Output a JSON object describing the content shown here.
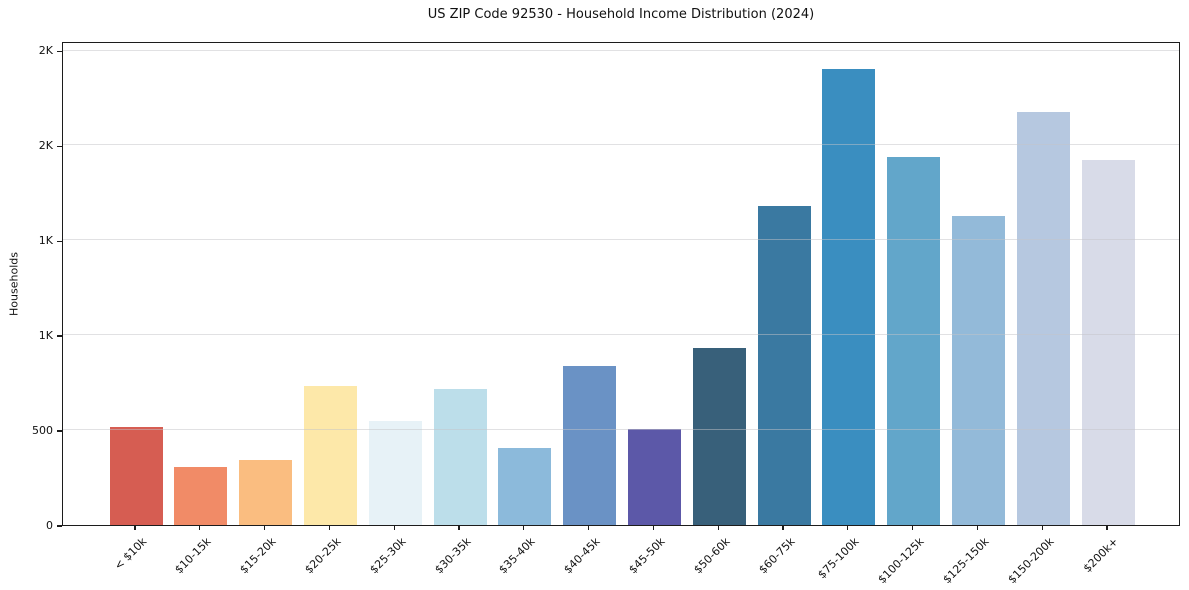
{
  "chart_data": {
    "type": "bar",
    "title": "US ZIP Code 92530 - Household Income Distribution (2024)",
    "xlabel": "",
    "ylabel": "Households",
    "categories": [
      "< $10k",
      "$10-15k",
      "$15-20k",
      "$20-25k",
      "$25-30k",
      "$30-35k",
      "$35-40k",
      "$40-45k",
      "$45-50k",
      "$50-60k",
      "$60-75k",
      "$75-100k",
      "$100-125k",
      "$125-150k",
      "$150-200k",
      "$200k+"
    ],
    "values": [
      515,
      305,
      345,
      730,
      550,
      715,
      405,
      840,
      505,
      935,
      1680,
      2405,
      1940,
      1630,
      2175,
      1925
    ],
    "bar_colors": [
      "#d65d52",
      "#f18b67",
      "#fabd80",
      "#fde8a9",
      "#e7f2f7",
      "#bcdeea",
      "#8cbadb",
      "#6a92c5",
      "#5c58a8",
      "#38607a",
      "#3a79a1",
      "#3a8ec0",
      "#62a6ca",
      "#93bad9",
      "#b6c8e0",
      "#d8dbe8"
    ],
    "ylim": [
      0,
      2550
    ],
    "yticks": [
      {
        "value": 0,
        "label": "0"
      },
      {
        "value": 500,
        "label": "500"
      },
      {
        "value": 1000,
        "label": "1K"
      },
      {
        "value": 1500,
        "label": "1K"
      },
      {
        "value": 2000,
        "label": "2K"
      },
      {
        "value": 2500,
        "label": "2K"
      }
    ],
    "grid": "horizontal",
    "legend": "none",
    "colors": {
      "spine": "#1c1c1c",
      "gridline": "#e8e8e8",
      "background": "#ffffff",
      "text": "#111111"
    }
  }
}
